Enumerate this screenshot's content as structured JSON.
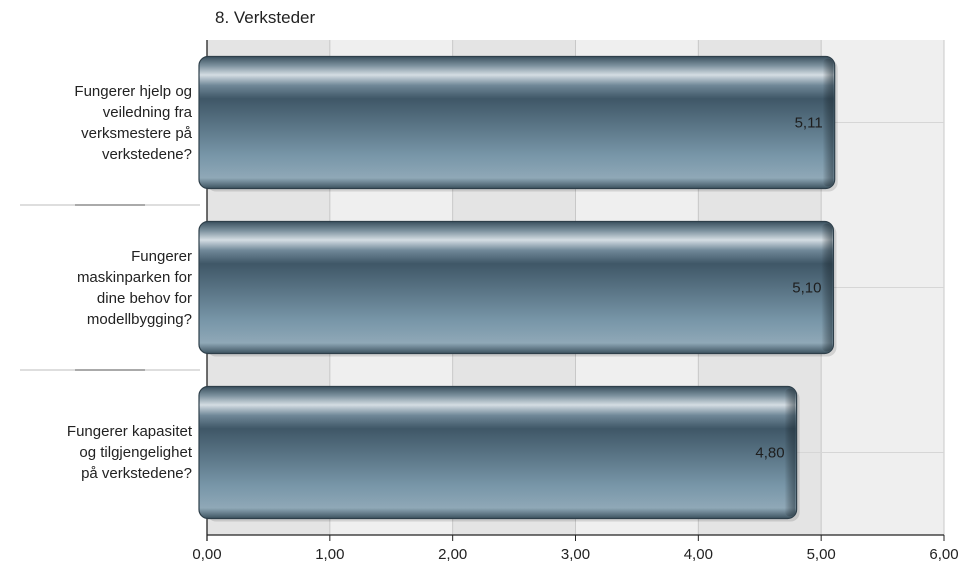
{
  "chart_data": {
    "type": "bar",
    "orientation": "horizontal",
    "title": "8. Verksteder",
    "categories": [
      "Fungerer hjelp og veiledning fra verksmestere på verkstedene?",
      "Fungerer maskinparken for dine behov for modellbygging?",
      "Fungerer kapasitet og tilgjengelighet på verkstedene?"
    ],
    "category_lines": [
      [
        "Fungerer hjelp og",
        "veiledning fra",
        "verksmestere på",
        "verkstedene?"
      ],
      [
        "Fungerer",
        "maskinparken for",
        "dine behov for",
        "modellbygging?"
      ],
      [
        "Fungerer kapasitet",
        "og tilgjengelighet",
        "på verkstedene?"
      ]
    ],
    "values": [
      5.11,
      5.1,
      4.8
    ],
    "value_labels": [
      "5,11",
      "5,10",
      "4,80"
    ],
    "xlim": [
      0,
      6
    ],
    "x_ticks": [
      "0,00",
      "1,00",
      "2,00",
      "3,00",
      "4,00",
      "5,00",
      "6,00"
    ],
    "grid": true,
    "bar_color": "#5f7f92",
    "plot_background": [
      "#e4e4e4",
      "#efefef"
    ]
  }
}
